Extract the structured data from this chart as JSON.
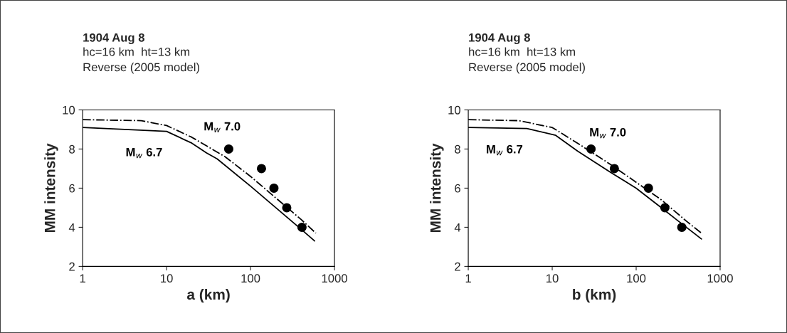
{
  "chart_data": [
    {
      "type": "line",
      "title": "1904 Aug 8",
      "subtitle": "hc=16 km  ht=13 km\nReverse (2005 model)",
      "xlabel": "a (km)",
      "ylabel": "MM intensity",
      "log": "x",
      "xlim": [
        1,
        1000
      ],
      "xticks": [
        1,
        10,
        100,
        1000
      ],
      "ylim": [
        2,
        10
      ],
      "yticks": [
        2,
        4,
        6,
        8,
        10
      ],
      "grid": false,
      "legend": false,
      "series": [
        {
          "name": "M$_{w}$ 6.7",
          "color": "#000000",
          "line_style": "solid",
          "marker": "none",
          "x": [
            1,
            10,
            20,
            30,
            40,
            100,
            200,
            400,
            580
          ],
          "values": [
            9.1,
            8.9,
            8.3,
            7.8,
            7.5,
            6.1,
            5.0,
            3.9,
            3.3
          ]
        },
        {
          "name": "M$_{w}$ 7.0",
          "color": "#000000",
          "line_style": "dashdot",
          "marker": "none",
          "x": [
            1,
            5,
            10,
            20,
            50,
            100,
            200,
            400,
            600
          ],
          "values": [
            9.5,
            9.45,
            9.2,
            8.6,
            7.6,
            6.6,
            5.5,
            4.4,
            3.7
          ]
        },
        {
          "type": "scatter",
          "color": "#000000",
          "marker": "circle",
          "x": [
            55,
            135,
            190,
            270,
            410
          ],
          "values": [
            8,
            7,
            6,
            5,
            4
          ]
        }
      ]
    },
    {
      "type": "line",
      "title": "1904 Aug 8",
      "subtitle": "hc=16 km  ht=13 km\nReverse (2005 model)",
      "xlabel": "b (km)",
      "ylabel": "MM intensity",
      "log": "x",
      "xlim": [
        1,
        1000
      ],
      "xticks": [
        1,
        10,
        100,
        1000
      ],
      "ylim": [
        2,
        10
      ],
      "yticks": [
        2,
        4,
        6,
        8,
        10
      ],
      "grid": false,
      "legend": false,
      "series": [
        {
          "name": "M$_{w}$ 6.7",
          "color": "#000000",
          "line_style": "solid",
          "marker": "none",
          "x": [
            1,
            5,
            11,
            20,
            50,
            100,
            200,
            300,
            600
          ],
          "values": [
            9.1,
            9.05,
            8.7,
            7.9,
            6.8,
            6.0,
            5.0,
            4.4,
            3.4
          ]
        },
        {
          "name": "M$_{w}$ 7.0",
          "color": "#000000",
          "line_style": "dashdot",
          "marker": "none",
          "x": [
            1,
            4,
            10,
            20,
            50,
            100,
            200,
            400,
            600
          ],
          "values": [
            9.5,
            9.45,
            9.1,
            8.3,
            7.2,
            6.3,
            5.4,
            4.3,
            3.7
          ]
        },
        {
          "type": "scatter",
          "color": "#000000",
          "marker": "circle",
          "x": [
            29,
            55,
            140,
            220,
            350
          ],
          "values": [
            8,
            7,
            6,
            5,
            4
          ]
        }
      ]
    }
  ]
}
